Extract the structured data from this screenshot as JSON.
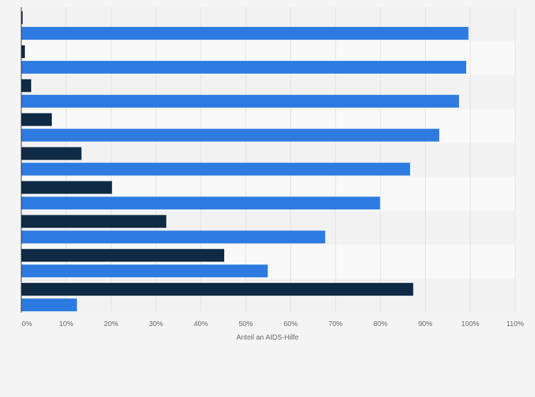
{
  "chart_data": {
    "type": "bar",
    "orientation": "horizontal",
    "title": "",
    "xlabel": "Anteil an AIDS-Hilfe",
    "ylabel": "",
    "xlim": [
      0,
      110
    ],
    "x_ticks": [
      "0%",
      "10%",
      "20%",
      "30%",
      "40%",
      "50%",
      "60%",
      "70%",
      "80%",
      "90%",
      "100%",
      "110%"
    ],
    "categories": [
      "",
      "",
      "",
      "",
      "",
      "",
      "",
      "",
      ""
    ],
    "series": [
      {
        "color": "#0f2a44",
        "values": [
          0.3,
          0.8,
          2.2,
          6.8,
          13.4,
          20.2,
          32.3,
          45.2,
          87.3
        ]
      },
      {
        "color": "#2d7be0",
        "values": [
          99.6,
          99.1,
          97.5,
          93.1,
          86.6,
          79.9,
          67.7,
          54.9,
          12.4
        ]
      }
    ],
    "grid": true,
    "legend": "none",
    "colors": {
      "band_light": "#f9f9f9",
      "band_dark": "#f2f2f2",
      "grid": "#e2e2e2",
      "axis": "#333333"
    }
  }
}
